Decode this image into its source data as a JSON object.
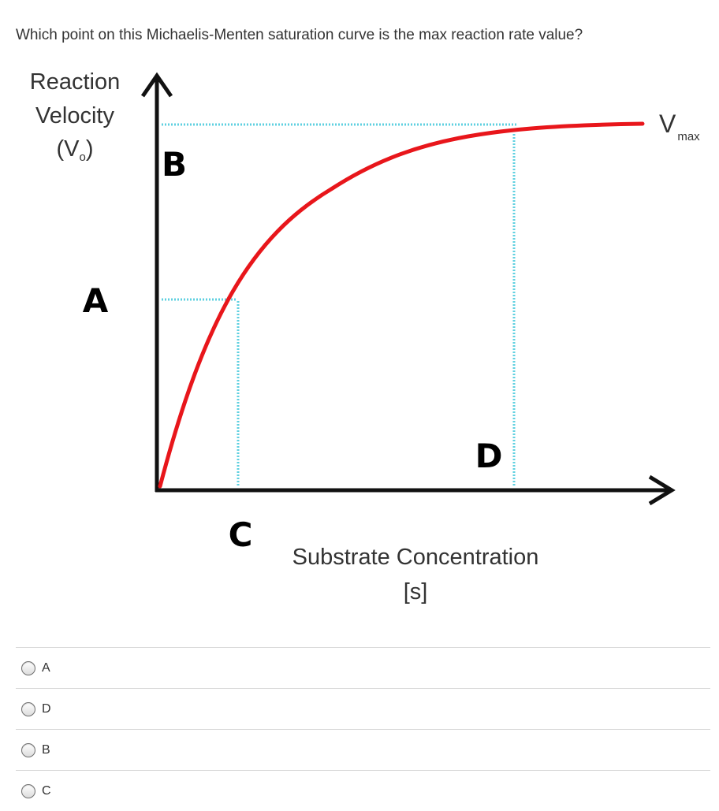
{
  "question": {
    "text": "Which point on this Michaelis-Menten saturation curve is the max reaction rate value?"
  },
  "figure": {
    "y_axis_label_line1": "Reaction",
    "y_axis_label_line2": "Velocity",
    "y_axis_label_line3_prefix": "(V",
    "y_axis_label_line3_sub": "o",
    "y_axis_label_line3_suffix": ")",
    "x_axis_label_line1": "Substrate Concentration",
    "x_axis_label_line2": "[s]",
    "vmax_label": "V",
    "vmax_sub": "max",
    "point_labels": [
      "A",
      "B",
      "C",
      "D"
    ],
    "curve_color": "#e8161b",
    "guide_color": "#5fd0e0"
  },
  "choices": [
    {
      "label": "A",
      "selected": false
    },
    {
      "label": "D",
      "selected": false
    },
    {
      "label": "B",
      "selected": false
    },
    {
      "label": "C",
      "selected": false
    }
  ]
}
